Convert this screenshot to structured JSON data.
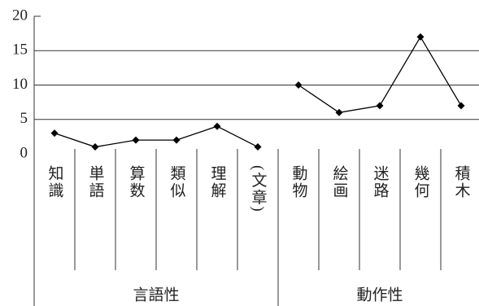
{
  "chart_data": {
    "type": "line",
    "groups": [
      {
        "label": "言語性",
        "categories": [
          "知識",
          "単語",
          "算数",
          "類似",
          "理解",
          "(文章)"
        ],
        "values": [
          3,
          1,
          2,
          2,
          4,
          1
        ]
      },
      {
        "label": "動作性",
        "categories": [
          "動物",
          "絵画",
          "迷路",
          "幾何",
          "積木"
        ],
        "values": [
          10,
          6,
          7,
          17,
          7
        ]
      }
    ],
    "color": "#000000",
    "ylim": [
      0,
      20
    ],
    "yticks": [
      0,
      5,
      10,
      15,
      20
    ],
    "grid": true
  }
}
